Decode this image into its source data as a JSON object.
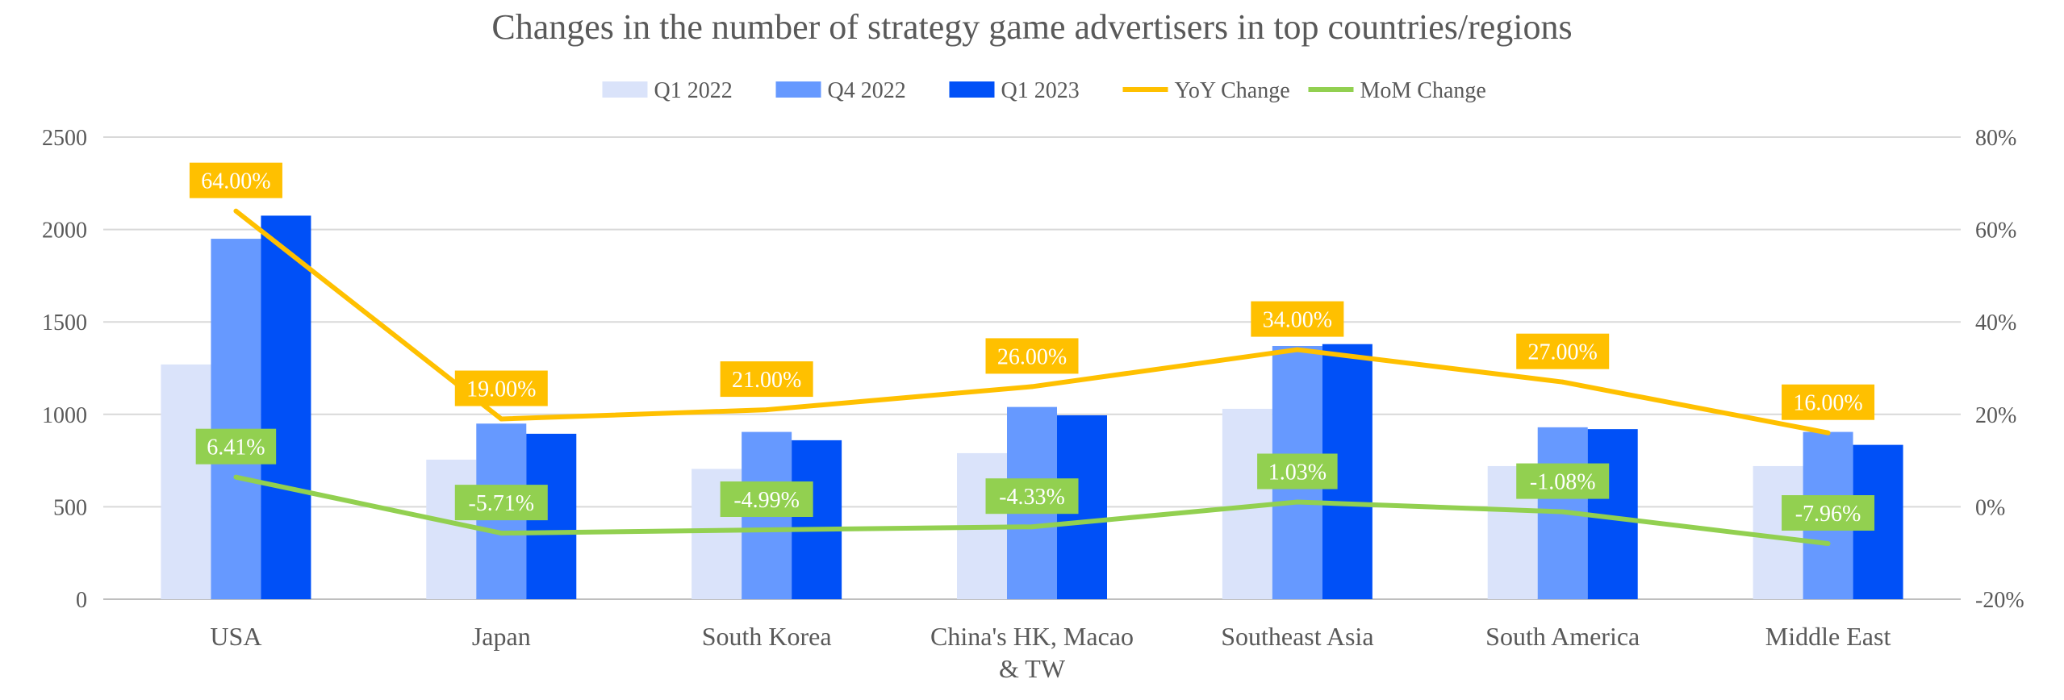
{
  "chart_data": {
    "type": "bar",
    "title": "Changes in the number of strategy game advertisers in top countries/regions",
    "categories": [
      "USA",
      "Japan",
      "South Korea",
      "China's HK, Macao & TW",
      "Southeast Asia",
      "South America",
      "Middle East"
    ],
    "category_label_lines": [
      [
        "USA"
      ],
      [
        "Japan"
      ],
      [
        "South Korea"
      ],
      [
        "China's HK, Macao",
        "& TW"
      ],
      [
        "Southeast Asia"
      ],
      [
        "South America"
      ],
      [
        "Middle East"
      ]
    ],
    "series": [
      {
        "name": "Q1 2022",
        "type": "bar",
        "color": "#dae3fa",
        "values": [
          1270,
          755,
          705,
          790,
          1030,
          720,
          720
        ]
      },
      {
        "name": "Q4 2022",
        "type": "bar",
        "color": "#6699ff",
        "values": [
          1950,
          950,
          905,
          1040,
          1370,
          930,
          905
        ]
      },
      {
        "name": "Q1 2023",
        "type": "bar",
        "color": "#0050f7",
        "values": [
          2075,
          895,
          860,
          995,
          1380,
          920,
          835
        ]
      },
      {
        "name": "YoY Change",
        "type": "line",
        "axis": "right",
        "color": "#ffc000",
        "values": [
          64.0,
          19.0,
          21.0,
          26.0,
          34.0,
          27.0,
          16.0
        ],
        "labels": [
          "64.00%",
          "19.00%",
          "21.00%",
          "26.00%",
          "34.00%",
          "27.00%",
          "16.00%"
        ]
      },
      {
        "name": "MoM Change",
        "type": "line",
        "axis": "right",
        "color": "#92d050",
        "values": [
          6.41,
          -5.71,
          -4.99,
          -4.33,
          1.03,
          -1.08,
          -7.96
        ],
        "labels": [
          "6.41%",
          "-5.71%",
          "-4.99%",
          "-4.33%",
          "1.03%",
          "-1.08%",
          "-7.96%"
        ]
      }
    ],
    "y_left": {
      "min": 0,
      "max": 2500,
      "ticks": [
        "0",
        "500",
        "1000",
        "1500",
        "2000",
        "2500"
      ]
    },
    "y_right": {
      "min": -20,
      "max": 80,
      "ticks": [
        "-20%",
        "0%",
        "20%",
        "40%",
        "60%",
        "80%"
      ]
    },
    "grid": true,
    "legend_position": "top"
  }
}
